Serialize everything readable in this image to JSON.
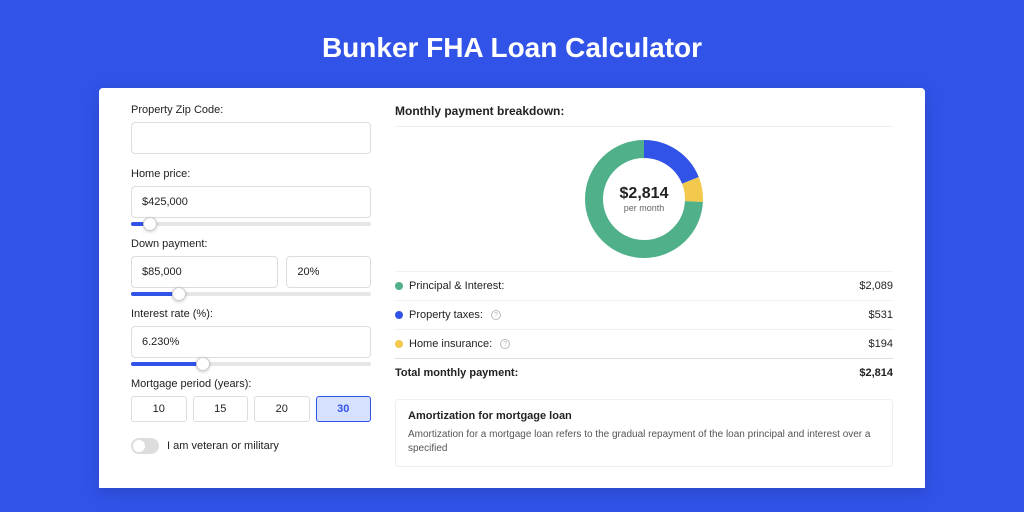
{
  "title": "Bunker FHA Loan Calculator",
  "form": {
    "zip": {
      "label": "Property Zip Code:",
      "value": ""
    },
    "price": {
      "label": "Home price:",
      "value": "$425,000",
      "slider_pct": 8
    },
    "down": {
      "label": "Down payment:",
      "value": "$85,000",
      "pct": "20%",
      "slider_pct": 20
    },
    "rate": {
      "label": "Interest rate (%):",
      "value": "6.230%",
      "slider_pct": 30
    },
    "period": {
      "label": "Mortgage period (years):",
      "options": [
        "10",
        "15",
        "20",
        "30"
      ],
      "selected": "30"
    },
    "veteran": {
      "label": "I am veteran or military",
      "checked": false
    }
  },
  "breakdown": {
    "title": "Monthly payment breakdown:",
    "center_amount": "$2,814",
    "center_sub": "per month",
    "items": [
      {
        "label": "Principal & Interest:",
        "value": "$2,089",
        "pct": 74.2,
        "color": "#4fb08a",
        "info": false
      },
      {
        "label": "Property taxes:",
        "value": "$531",
        "pct": 18.9,
        "color": "#3153e8",
        "info": true
      },
      {
        "label": "Home insurance:",
        "value": "$194",
        "pct": 6.9,
        "color": "#f2c94c",
        "info": true
      }
    ],
    "total": {
      "label": "Total monthly payment:",
      "value": "$2,814"
    }
  },
  "amort": {
    "title": "Amortization for mortgage loan",
    "text": "Amortization for a mortgage loan refers to the gradual repayment of the loan principal and interest over a specified"
  },
  "chart": {
    "radius": 50,
    "stroke": 18,
    "background": "#ffffff"
  }
}
